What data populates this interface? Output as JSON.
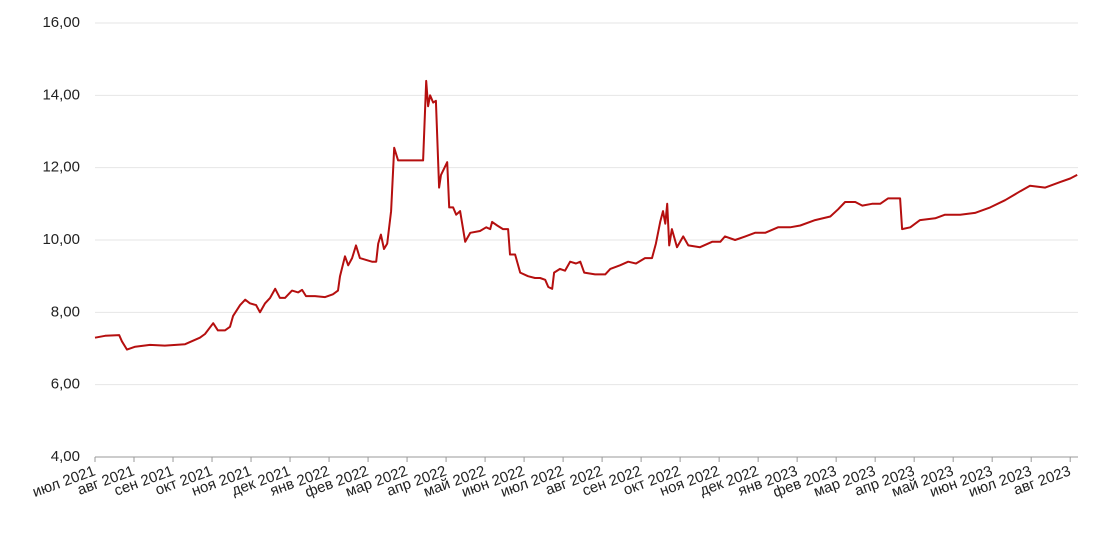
{
  "chart_data": {
    "type": "line",
    "color": "#b50f0f",
    "grid": true,
    "xlim": [
      0,
      25.2
    ],
    "xticks": [
      {
        "value": 0,
        "label": "июл 2021"
      },
      {
        "value": 1,
        "label": "авг 2021"
      },
      {
        "value": 2,
        "label": "сен 2021"
      },
      {
        "value": 3,
        "label": "окт 2021"
      },
      {
        "value": 4,
        "label": "ноя 2021"
      },
      {
        "value": 5,
        "label": "дек 2021"
      },
      {
        "value": 6,
        "label": "янв 2022"
      },
      {
        "value": 7,
        "label": "фев 2022"
      },
      {
        "value": 8,
        "label": "мар 2022"
      },
      {
        "value": 9,
        "label": "апр 2022"
      },
      {
        "value": 10,
        "label": "май 2022"
      },
      {
        "value": 11,
        "label": "июн 2022"
      },
      {
        "value": 12,
        "label": "июл 2022"
      },
      {
        "value": 13,
        "label": "авг 2022"
      },
      {
        "value": 14,
        "label": "сен 2022"
      },
      {
        "value": 15,
        "label": "окт 2022"
      },
      {
        "value": 16,
        "label": "ноя 2022"
      },
      {
        "value": 17,
        "label": "дек 2022"
      },
      {
        "value": 18,
        "label": "янв 2023"
      },
      {
        "value": 19,
        "label": "фев 2023"
      },
      {
        "value": 20,
        "label": "мар 2023"
      },
      {
        "value": 21,
        "label": "апр 2023"
      },
      {
        "value": 22,
        "label": "май 2023"
      },
      {
        "value": 23,
        "label": "июн 2023"
      },
      {
        "value": 24,
        "label": "июл 2023"
      },
      {
        "value": 25,
        "label": "авг 2023"
      }
    ],
    "ylim": [
      4,
      16
    ],
    "yticks": [
      {
        "value": 4,
        "label": "4,00"
      },
      {
        "value": 6,
        "label": "6,00"
      },
      {
        "value": 8,
        "label": "8,00"
      },
      {
        "value": 10,
        "label": "10,00"
      },
      {
        "value": 12,
        "label": "12,00"
      },
      {
        "value": 14,
        "label": "14,00"
      },
      {
        "value": 16,
        "label": "16,00"
      }
    ],
    "x": [
      0,
      0.26,
      0.62,
      0.69,
      0.82,
      1.03,
      1.41,
      1.79,
      2.31,
      2.69,
      2.82,
      3.03,
      3.15,
      3.33,
      3.46,
      3.54,
      3.72,
      3.85,
      3.97,
      4.13,
      4.23,
      4.36,
      4.49,
      4.62,
      4.74,
      4.87,
      5.05,
      5.21,
      5.31,
      5.41,
      5.64,
      5.9,
      6.1,
      6.23,
      6.28,
      6.41,
      6.49,
      6.59,
      6.69,
      6.79,
      6.95,
      7.1,
      7.21,
      7.26,
      7.33,
      7.41,
      7.49,
      7.59,
      7.67,
      7.77,
      8.08,
      8.41,
      8.49,
      8.54,
      8.59,
      8.67,
      8.74,
      8.82,
      8.87,
      9.03,
      9.08,
      9.18,
      9.26,
      9.36,
      9.49,
      9.62,
      9.87,
      10.03,
      10.13,
      10.18,
      10.31,
      10.46,
      10.59,
      10.64,
      10.77,
      10.9,
      11.1,
      11.28,
      11.41,
      11.54,
      11.62,
      11.72,
      11.77,
      11.92,
      12.05,
      12.18,
      12.33,
      12.44,
      12.54,
      12.82,
      13.08,
      13.21,
      13.46,
      13.67,
      13.87,
      14.1,
      14.28,
      14.38,
      14.49,
      14.56,
      14.62,
      14.67,
      14.72,
      14.79,
      14.92,
      15.08,
      15.21,
      15.51,
      15.82,
      16.03,
      16.15,
      16.41,
      16.67,
      16.92,
      17.18,
      17.51,
      17.82,
      18.08,
      18.46,
      18.85,
      19.05,
      19.23,
      19.49,
      19.67,
      19.92,
      20.13,
      20.33,
      20.64,
      20.69,
      20.9,
      21.15,
      21.54,
      21.79,
      22.18,
      22.56,
      22.95,
      23.33,
      23.72,
      23.97,
      24.36,
      24.74,
      25.0,
      25.18
    ],
    "values": [
      7.3,
      7.35,
      7.37,
      7.2,
      6.97,
      7.05,
      7.1,
      7.08,
      7.12,
      7.3,
      7.4,
      7.7,
      7.5,
      7.5,
      7.6,
      7.9,
      8.2,
      8.35,
      8.25,
      8.2,
      8.0,
      8.25,
      8.4,
      8.65,
      8.4,
      8.4,
      8.6,
      8.55,
      8.62,
      8.45,
      8.45,
      8.42,
      8.5,
      8.6,
      9.0,
      9.55,
      9.3,
      9.5,
      9.85,
      9.5,
      9.45,
      9.4,
      9.4,
      9.9,
      10.15,
      9.75,
      9.9,
      10.8,
      12.55,
      12.2,
      12.2,
      12.2,
      14.4,
      13.7,
      14.0,
      13.8,
      13.85,
      11.45,
      11.8,
      12.15,
      10.9,
      10.9,
      10.7,
      10.8,
      9.95,
      10.2,
      10.25,
      10.35,
      10.3,
      10.5,
      10.4,
      10.3,
      10.3,
      9.6,
      9.6,
      9.1,
      9.0,
      8.95,
      8.95,
      8.9,
      8.7,
      8.65,
      9.1,
      9.2,
      9.15,
      9.4,
      9.35,
      9.4,
      9.1,
      9.05,
      9.05,
      9.2,
      9.3,
      9.4,
      9.35,
      9.5,
      9.5,
      9.9,
      10.5,
      10.8,
      10.45,
      11.0,
      9.85,
      10.3,
      9.8,
      10.1,
      9.85,
      9.8,
      9.95,
      9.95,
      10.1,
      10.0,
      10.1,
      10.2,
      10.2,
      10.35,
      10.35,
      10.4,
      10.55,
      10.65,
      10.85,
      11.05,
      11.05,
      10.95,
      11.0,
      11.0,
      11.15,
      11.15,
      10.3,
      10.35,
      10.55,
      10.6,
      10.7,
      10.7,
      10.75,
      10.9,
      11.1,
      11.35,
      11.5,
      11.45,
      11.6,
      11.7,
      11.8
    ]
  }
}
